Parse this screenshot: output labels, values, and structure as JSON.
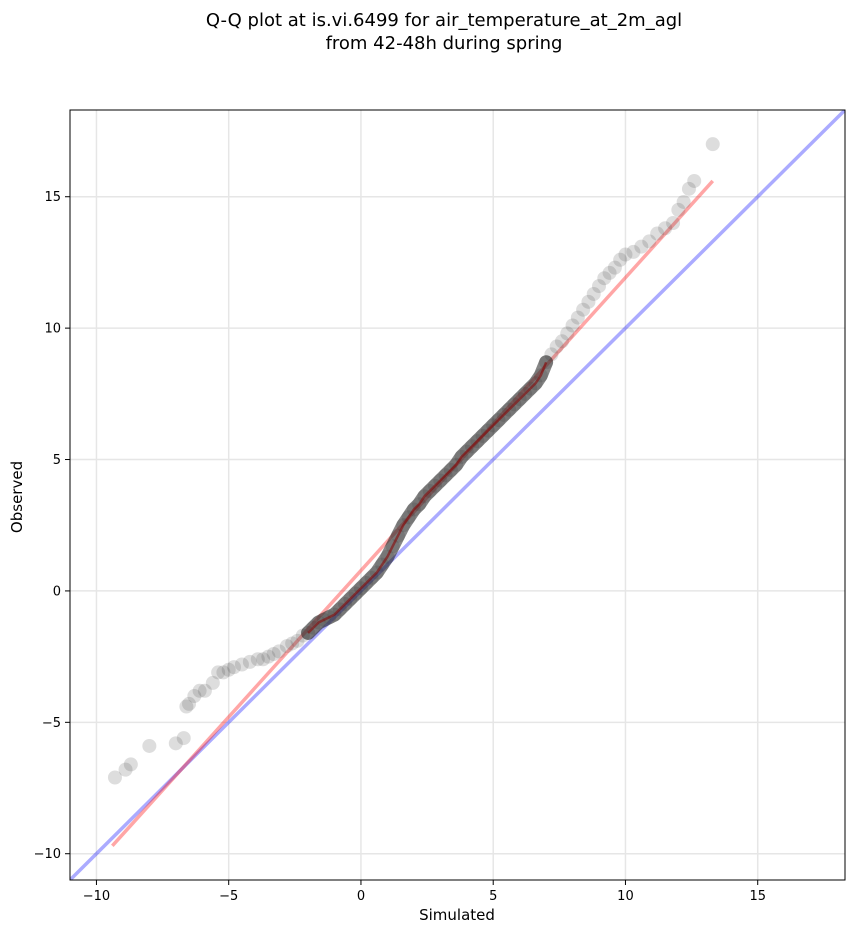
{
  "chart_data": {
    "type": "scatter",
    "title_lines": [
      "Q-Q plot at is.vi.6499 for air_temperature_at_2m_agl",
      "from 42-48h during spring"
    ],
    "xlabel": "Simulated",
    "ylabel": "Observed",
    "xlim": [
      -11,
      18.3
    ],
    "ylim": [
      -11,
      18.3
    ],
    "xticks": [
      -10,
      -5,
      0,
      5,
      10,
      15
    ],
    "yticks": [
      -10,
      -5,
      0,
      5,
      10,
      15
    ],
    "tick_labels": [
      "−10",
      "−5",
      "0",
      "5",
      "10",
      "15"
    ],
    "grid": true,
    "colors": {
      "points": "#444444",
      "identity_line": "#0000ff",
      "fit_line": "#ff0000",
      "dense_overlay": "#8b0000"
    },
    "identity_line": {
      "x": [
        -11,
        18.3
      ],
      "y": [
        -11,
        18.3
      ]
    },
    "fit_line": {
      "x": [
        -9.4,
        13.3
      ],
      "y": [
        -9.7,
        15.6
      ]
    },
    "series": [
      {
        "x": [
          -9.3,
          -8.9,
          -8.7,
          -8.0,
          -7.0,
          -6.7,
          -6.6,
          -6.5,
          -6.3,
          -6.1,
          -5.9,
          -5.6,
          -5.4,
          -5.2,
          -5.0,
          -4.8,
          -4.5,
          -4.2,
          -3.9,
          -3.7,
          -3.5,
          -3.3,
          -3.1,
          -2.8,
          -2.6,
          -2.4,
          -2.2,
          -2.0,
          -1.8,
          -1.6,
          -1.4,
          -1.2,
          -1.0,
          -0.8,
          -0.6,
          -0.4,
          -0.2,
          0.0,
          0.2,
          0.4,
          0.6,
          0.8,
          1.0,
          1.2,
          1.4,
          1.6,
          1.8,
          2.0,
          2.2,
          2.4,
          2.6,
          2.8,
          3.0,
          3.2,
          3.4,
          3.6,
          3.8,
          4.0,
          4.2,
          4.4,
          4.6,
          4.8,
          5.0,
          5.2,
          5.4,
          5.6,
          5.8,
          6.0,
          6.2,
          6.4,
          6.6,
          6.8,
          7.0,
          7.2,
          7.4,
          7.6,
          7.8,
          8.0,
          8.2,
          8.4,
          8.6,
          8.8,
          9.0,
          9.2,
          9.4,
          9.6,
          9.8,
          10.0,
          10.3,
          10.6,
          10.9,
          11.2,
          11.5,
          11.8,
          12.0,
          12.2,
          12.4,
          12.6,
          13.3
        ],
        "y": [
          -7.1,
          -6.8,
          -6.6,
          -5.9,
          -5.8,
          -5.6,
          -4.4,
          -4.3,
          -4.0,
          -3.8,
          -3.8,
          -3.5,
          -3.1,
          -3.1,
          -3.0,
          -2.9,
          -2.8,
          -2.7,
          -2.6,
          -2.6,
          -2.5,
          -2.4,
          -2.3,
          -2.1,
          -2.0,
          -1.9,
          -1.7,
          -1.6,
          -1.4,
          -1.2,
          -1.1,
          -1.0,
          -0.9,
          -0.7,
          -0.5,
          -0.3,
          -0.1,
          0.1,
          0.3,
          0.5,
          0.7,
          1.0,
          1.3,
          1.7,
          2.1,
          2.5,
          2.8,
          3.1,
          3.3,
          3.6,
          3.8,
          4.0,
          4.2,
          4.4,
          4.6,
          4.8,
          5.1,
          5.3,
          5.5,
          5.7,
          5.9,
          6.1,
          6.3,
          6.5,
          6.7,
          6.9,
          7.1,
          7.3,
          7.5,
          7.7,
          7.9,
          8.2,
          8.7,
          9.0,
          9.3,
          9.5,
          9.8,
          10.1,
          10.4,
          10.7,
          11.0,
          11.3,
          11.6,
          11.9,
          12.1,
          12.3,
          12.6,
          12.8,
          12.9,
          13.1,
          13.3,
          13.6,
          13.8,
          14.0,
          14.5,
          14.8,
          15.3,
          15.6,
          17.0
        ]
      }
    ]
  }
}
